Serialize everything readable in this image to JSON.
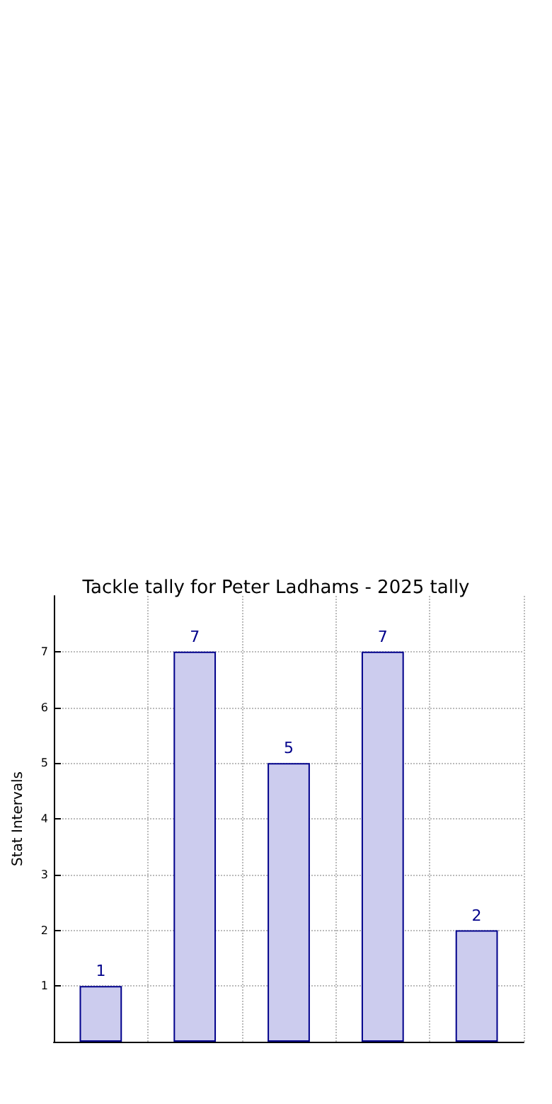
{
  "chart_data": {
    "type": "bar",
    "title": "Tackle tally for Peter Ladhams - 2025 tally",
    "ylabel": "Stat Intervals",
    "categories": [
      null,
      null,
      null,
      null,
      null
    ],
    "series": [
      {
        "color": "#ccccee",
        "values": [
          1,
          7,
          5,
          7,
          2
        ]
      }
    ],
    "data_labels": true,
    "ylim": [
      0,
      8
    ],
    "yticks": [
      1,
      2,
      3,
      4,
      5,
      6,
      7
    ],
    "grid": true
  }
}
